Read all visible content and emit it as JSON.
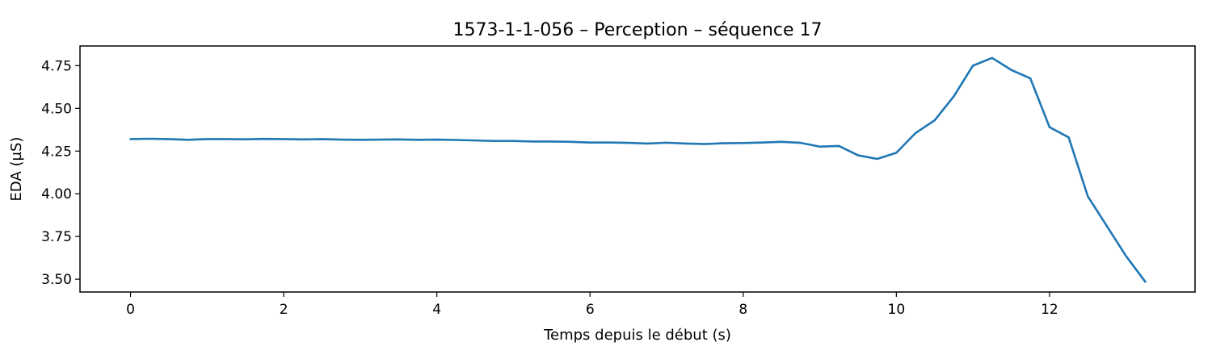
{
  "chart_data": {
    "type": "line",
    "title": "1573-1-1-056 – Perception – séquence 17",
    "xlabel": "Temps depuis le début (s)",
    "ylabel": "EDA (µS)",
    "xlim": [
      -0.66,
      13.9
    ],
    "ylim": [
      3.425,
      4.865
    ],
    "xticks": [
      0,
      2,
      4,
      6,
      8,
      10,
      12
    ],
    "xtick_labels": [
      "0",
      "2",
      "4",
      "6",
      "8",
      "10",
      "12"
    ],
    "yticks": [
      3.5,
      3.75,
      4.0,
      4.25,
      4.5,
      4.75
    ],
    "ytick_labels": [
      "3.50",
      "3.75",
      "4.00",
      "4.25",
      "4.50",
      "4.75"
    ],
    "grid": false,
    "line_color": "#1f77b4",
    "series": [
      {
        "x": [
          0,
          0.25,
          0.5,
          0.75,
          1,
          1.25,
          1.5,
          1.75,
          2,
          2.25,
          2.5,
          2.75,
          3,
          3.25,
          3.5,
          3.75,
          4,
          4.25,
          4.5,
          4.75,
          5,
          5.25,
          5.5,
          5.75,
          6,
          6.25,
          6.5,
          6.75,
          7,
          7.25,
          7.5,
          7.75,
          8,
          8.25,
          8.5,
          8.75,
          9,
          9.25,
          9.5,
          9.75,
          10,
          10.25,
          10.5,
          10.75,
          11,
          11.25,
          11.5,
          11.75,
          12,
          12.25,
          12.5,
          12.75,
          13,
          13.25
        ],
        "values": [
          4.32,
          4.322,
          4.32,
          4.316,
          4.32,
          4.32,
          4.319,
          4.321,
          4.32,
          4.318,
          4.32,
          4.317,
          4.316,
          4.317,
          4.318,
          4.316,
          4.317,
          4.315,
          4.312,
          4.309,
          4.309,
          4.306,
          4.306,
          4.304,
          4.3,
          4.3,
          4.298,
          4.294,
          4.299,
          4.294,
          4.291,
          4.296,
          4.297,
          4.3,
          4.304,
          4.298,
          4.276,
          4.28,
          4.225,
          4.204,
          4.24,
          4.355,
          4.43,
          4.57,
          4.75,
          4.795,
          4.725,
          4.675,
          4.39,
          4.33,
          3.985,
          3.81,
          3.635,
          3.485
        ]
      }
    ]
  }
}
